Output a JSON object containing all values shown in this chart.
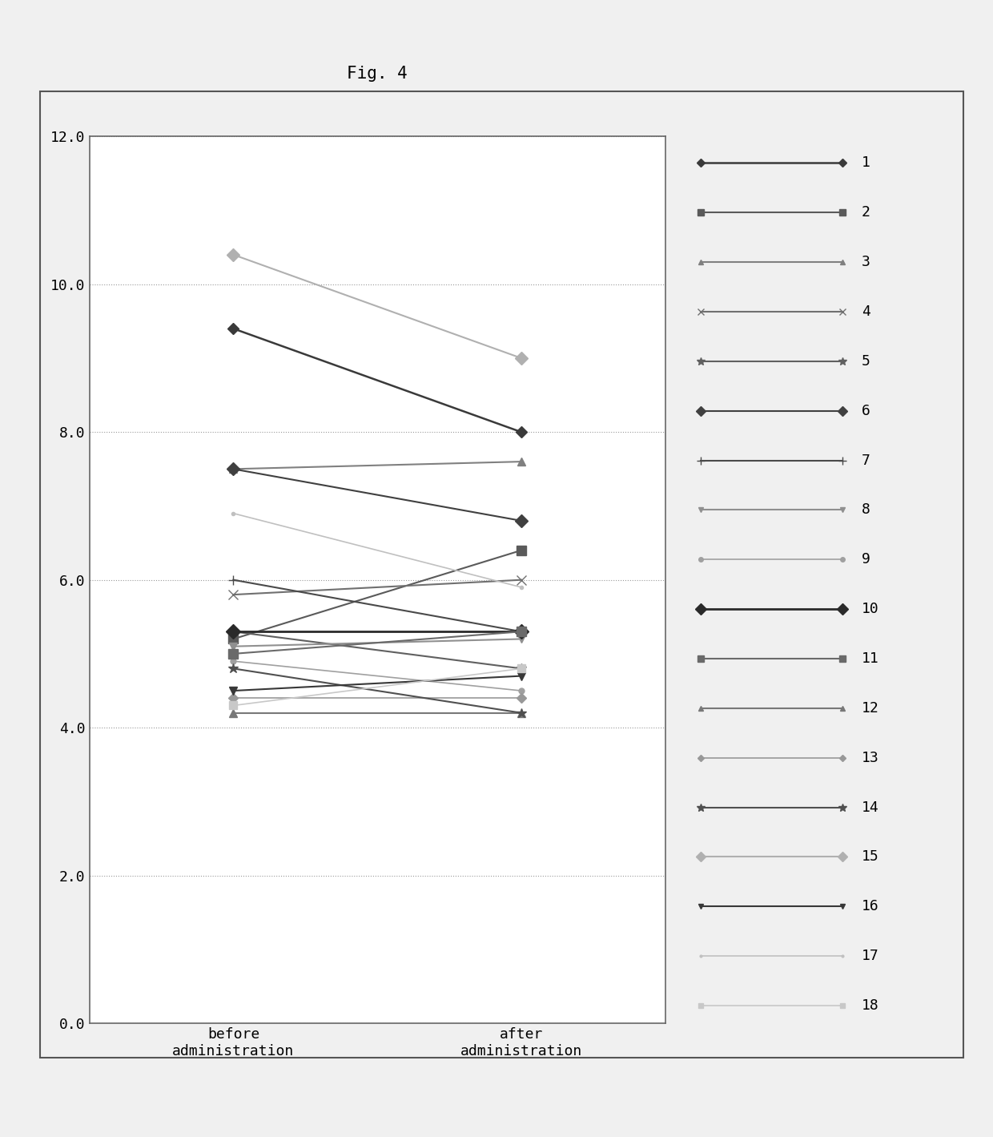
{
  "title": "Fig. 4",
  "x_labels": [
    "before\nadministration",
    "after\nadministration"
  ],
  "ylim": [
    0.0,
    12.0
  ],
  "yticks": [
    0.0,
    2.0,
    4.0,
    6.0,
    8.0,
    10.0,
    12.0
  ],
  "series": [
    {
      "id": 1,
      "before": 9.4,
      "after": 8.0,
      "color": "#3a3a3a",
      "marker": "D",
      "markersize": 7,
      "linewidth": 1.8
    },
    {
      "id": 2,
      "before": 5.2,
      "after": 6.4,
      "color": "#5a5a5a",
      "marker": "s",
      "markersize": 8,
      "linewidth": 1.5
    },
    {
      "id": 3,
      "before": 7.5,
      "after": 7.6,
      "color": "#808080",
      "marker": "^",
      "markersize": 7,
      "linewidth": 1.5
    },
    {
      "id": 4,
      "before": 5.8,
      "after": 6.0,
      "color": "#707070",
      "marker": "x",
      "markersize": 8,
      "linewidth": 1.5
    },
    {
      "id": 5,
      "before": 5.3,
      "after": 4.8,
      "color": "#606060",
      "marker": "*",
      "markersize": 9,
      "linewidth": 1.5
    },
    {
      "id": 6,
      "before": 7.5,
      "after": 6.8,
      "color": "#404040",
      "marker": "D",
      "markersize": 8,
      "linewidth": 1.5
    },
    {
      "id": 7,
      "before": 6.0,
      "after": 5.3,
      "color": "#4a4a4a",
      "marker": "+",
      "markersize": 9,
      "linewidth": 1.5
    },
    {
      "id": 8,
      "before": 5.1,
      "after": 5.2,
      "color": "#909090",
      "marker": "v",
      "markersize": 7,
      "linewidth": 1.5
    },
    {
      "id": 9,
      "before": 4.9,
      "after": 4.5,
      "color": "#a0a0a0",
      "marker": "o",
      "markersize": 5,
      "linewidth": 1.2
    },
    {
      "id": 10,
      "before": 5.3,
      "after": 5.3,
      "color": "#2a2a2a",
      "marker": "D",
      "markersize": 9,
      "linewidth": 2.0
    },
    {
      "id": 11,
      "before": 5.0,
      "after": 5.3,
      "color": "#6a6a6a",
      "marker": "s",
      "markersize": 8,
      "linewidth": 1.5
    },
    {
      "id": 12,
      "before": 4.2,
      "after": 4.2,
      "color": "#787878",
      "marker": "^",
      "markersize": 7,
      "linewidth": 1.5
    },
    {
      "id": 13,
      "before": 4.4,
      "after": 4.4,
      "color": "#989898",
      "marker": "D",
      "markersize": 6,
      "linewidth": 1.2
    },
    {
      "id": 14,
      "before": 4.8,
      "after": 4.2,
      "color": "#505050",
      "marker": "*",
      "markersize": 9,
      "linewidth": 1.5
    },
    {
      "id": 15,
      "before": 10.4,
      "after": 9.0,
      "color": "#b0b0b0",
      "marker": "D",
      "markersize": 8,
      "linewidth": 1.5
    },
    {
      "id": 16,
      "before": 4.5,
      "after": 4.7,
      "color": "#383838",
      "marker": "v",
      "markersize": 7,
      "linewidth": 1.5
    },
    {
      "id": 17,
      "before": 6.9,
      "after": 5.9,
      "color": "#c0c0c0",
      "marker": ".",
      "markersize": 6,
      "linewidth": 1.2
    },
    {
      "id": 18,
      "before": 4.3,
      "after": 4.8,
      "color": "#c8c8c8",
      "marker": "s",
      "markersize": 7,
      "linewidth": 1.2
    }
  ],
  "plot_bg": "#ffffff",
  "figure_bg": "#f0f0f0",
  "grid_color": "#999999",
  "grid_linestyle": ":",
  "grid_linewidth": 0.8,
  "spine_color": "#666666",
  "title_fontsize": 15,
  "tick_fontsize": 13,
  "legend_fontsize": 13
}
